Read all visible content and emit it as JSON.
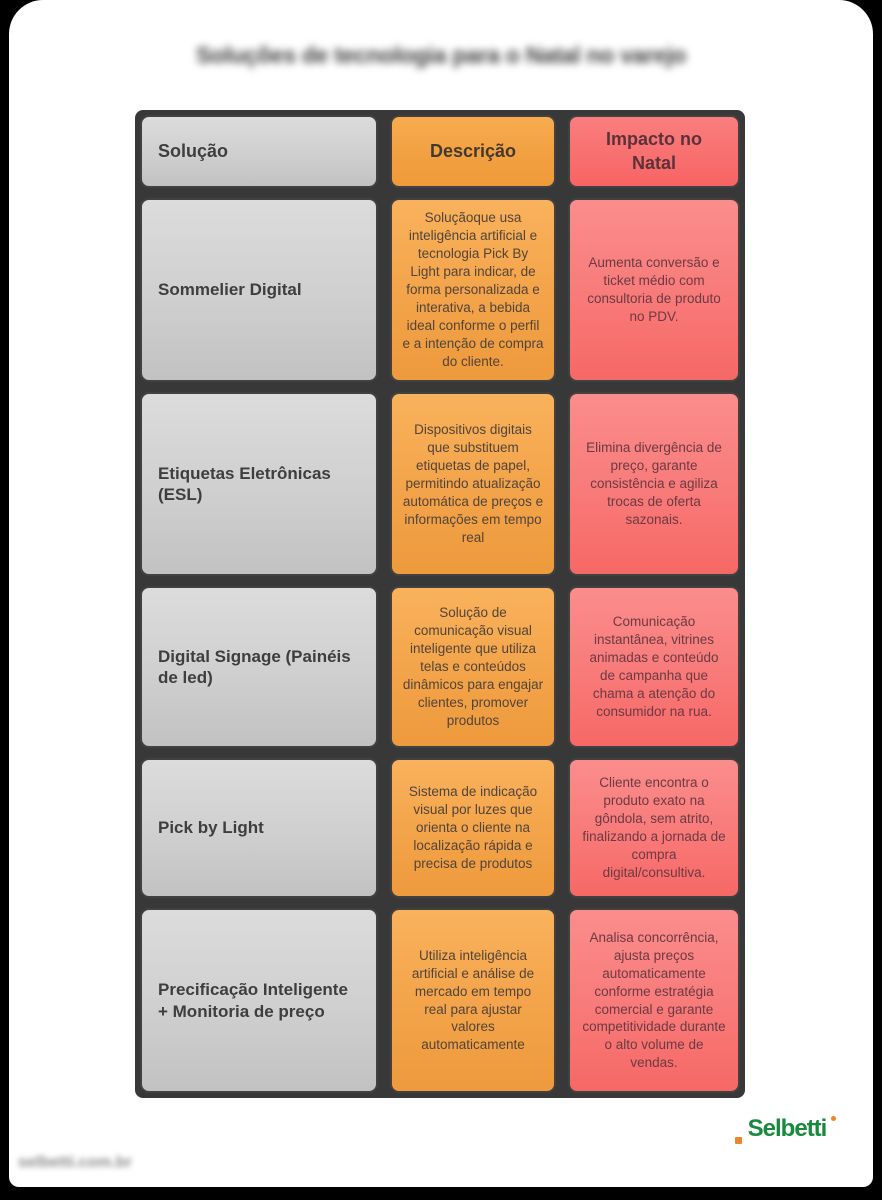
{
  "page": {
    "blurred_title": "Soluções de tecnologia para o Natal no varejo",
    "blurred_watermark": "selbetti.com.br"
  },
  "logo": {
    "brand": "Selbetti",
    "brand_green": "#178a3e",
    "accent_orange": "#e8872e"
  },
  "colors": {
    "solution_column": "#cfcfcf",
    "description_column": "#f3a349",
    "impact_column": "#f87a79",
    "panel_background": "#383838",
    "page_background": "#ffffff"
  },
  "table": {
    "headers": {
      "solution": "Solução",
      "description": "Descrição",
      "impact": "Impacto no Natal"
    },
    "rows": [
      {
        "solution": "Sommelier Digital",
        "description": "Soluçãoque usa inteligência artificial e tecnologia Pick By Light para indicar, de forma personalizada e interativa, a bebida ideal conforme o perfil e a intenção de compra do cliente.",
        "impact": "Aumenta conversão e ticket médio com consultoria de produto no PDV."
      },
      {
        "solution": "Etiquetas Eletrônicas (ESL)",
        "description": "Dispositivos digitais que substituem etiquetas de papel, permitindo atualização automática de preços e informações em tempo real",
        "impact": "Elimina divergência de preço, garante consistência e agiliza trocas de oferta sazonais."
      },
      {
        "solution": "Digital Signage (Painéis de led)",
        "description": "Solução de comunicação visual inteligente que utiliza telas e conteúdos dinâmicos para engajar clientes, promover produtos",
        "impact": "Comunicação instantânea, vitrines animadas e conteúdo de campanha que chama a atenção do consumidor na rua."
      },
      {
        "solution": "Pick by Light",
        "description": "Sistema de indicação visual por luzes que orienta o cliente na localização rápida e precisa de produtos",
        "impact": "Cliente encontra o produto exato na gôndola, sem atrito, finalizando a jornada de compra digital/consultiva."
      },
      {
        "solution": "Precificação Inteligente + Monitoria de preço",
        "description": "Utiliza inteligência artificial e análise de mercado em tempo real para ajustar valores automaticamente",
        "impact": "Analisa concorrência, ajusta preços automaticamente conforme estratégia comercial e garante competitividade durante o alto volume de vendas."
      }
    ]
  }
}
